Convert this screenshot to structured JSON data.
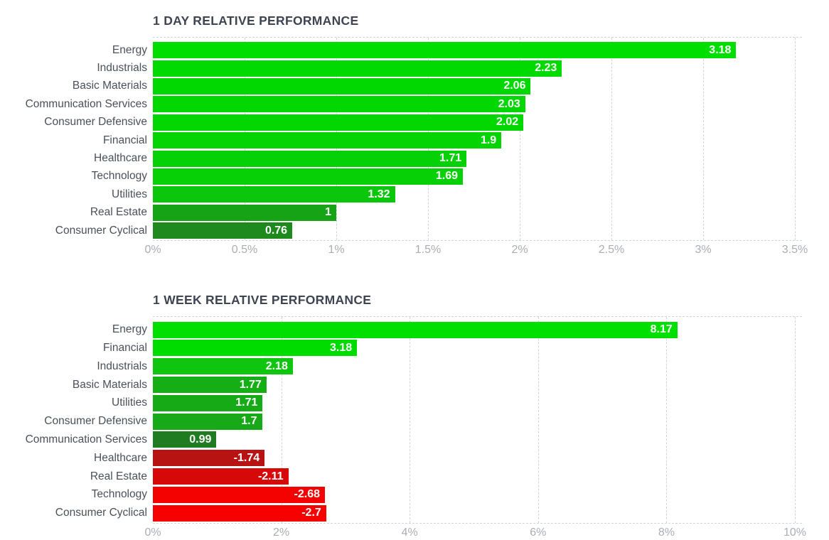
{
  "page": {
    "background": "#ffffff"
  },
  "styles": {
    "title_color": "#3e4551",
    "category_color": "#4a505a",
    "tick_color": "#a9aeb6",
    "value_text_color": "#ffffff",
    "grid_color": "#d4d4d4",
    "positive_bright": "#00dd00",
    "negative_bright": "#f60000"
  },
  "chart_data": [
    {
      "type": "bar",
      "orientation": "horizontal",
      "title": "1 DAY RELATIVE PERFORMANCE",
      "xlabel": "",
      "ylabel": "",
      "xlim": [
        0,
        3.5
      ],
      "grid": "vertical-dashed",
      "legend": "none",
      "x_ticks": [
        {
          "label": "0%",
          "value": 0
        },
        {
          "label": "0.5%",
          "value": 0.5
        },
        {
          "label": "1%",
          "value": 1
        },
        {
          "label": "1.5%",
          "value": 1.5
        },
        {
          "label": "2%",
          "value": 2
        },
        {
          "label": "2.5%",
          "value": 2.5
        },
        {
          "label": "3%",
          "value": 3
        },
        {
          "label": "3.5%",
          "value": 3.5
        }
      ],
      "bars": [
        {
          "category": "Energy",
          "value": 3.18,
          "label": "3.18",
          "color": "#00dd00"
        },
        {
          "category": "Industrials",
          "value": 2.23,
          "label": "2.23",
          "color": "#00da00"
        },
        {
          "category": "Basic Materials",
          "value": 2.06,
          "label": "2.06",
          "color": "#01d801"
        },
        {
          "category": "Communication Services",
          "value": 2.03,
          "label": "2.03",
          "color": "#02d702"
        },
        {
          "category": "Consumer Defensive",
          "value": 2.02,
          "label": "2.02",
          "color": "#02d702"
        },
        {
          "category": "Financial",
          "value": 1.9,
          "label": "1.9",
          "color": "#04d404"
        },
        {
          "category": "Healthcare",
          "value": 1.71,
          "label": "1.71",
          "color": "#06d106"
        },
        {
          "category": "Technology",
          "value": 1.69,
          "label": "1.69",
          "color": "#07d007"
        },
        {
          "category": "Utilities",
          "value": 1.32,
          "label": "1.32",
          "color": "#0cc60c"
        },
        {
          "category": "Real Estate",
          "value": 1,
          "label": "1",
          "color": "#16a416"
        },
        {
          "category": "Consumer Cyclical",
          "value": 0.76,
          "label": "0.76",
          "color": "#1e8a1e"
        }
      ]
    },
    {
      "type": "bar",
      "orientation": "horizontal",
      "title": "1 WEEK RELATIVE PERFORMANCE",
      "xlabel": "",
      "ylabel": "",
      "xlim": [
        0,
        10
      ],
      "grid": "vertical-dashed",
      "legend": "none",
      "note": "negative values drawn by magnitude in red",
      "x_ticks": [
        {
          "label": "0%",
          "value": 0
        },
        {
          "label": "2%",
          "value": 2
        },
        {
          "label": "4%",
          "value": 4
        },
        {
          "label": "6%",
          "value": 6
        },
        {
          "label": "8%",
          "value": 8
        },
        {
          "label": "10%",
          "value": 10
        }
      ],
      "bars": [
        {
          "category": "Energy",
          "value": 8.17,
          "label": "8.17",
          "color": "#00e000"
        },
        {
          "category": "Financial",
          "value": 3.18,
          "label": "3.18",
          "color": "#00dc00"
        },
        {
          "category": "Industrials",
          "value": 2.18,
          "label": "2.18",
          "color": "#10c510"
        },
        {
          "category": "Basic Materials",
          "value": 1.77,
          "label": "1.77",
          "color": "#15ae15"
        },
        {
          "category": "Utilities",
          "value": 1.71,
          "label": "1.71",
          "color": "#16aa16"
        },
        {
          "category": "Consumer Defensive",
          "value": 1.7,
          "label": "1.7",
          "color": "#17a917"
        },
        {
          "category": "Communication Services",
          "value": 0.99,
          "label": "0.99",
          "color": "#207c20"
        },
        {
          "category": "Healthcare",
          "value": -1.74,
          "label": "-1.74",
          "color": "#b81313"
        },
        {
          "category": "Real Estate",
          "value": -2.11,
          "label": "-2.11",
          "color": "#d70808"
        },
        {
          "category": "Technology",
          "value": -2.68,
          "label": "-2.68",
          "color": "#f40101"
        },
        {
          "category": "Consumer Cyclical",
          "value": -2.7,
          "label": "-2.7",
          "color": "#f60000"
        }
      ]
    }
  ]
}
